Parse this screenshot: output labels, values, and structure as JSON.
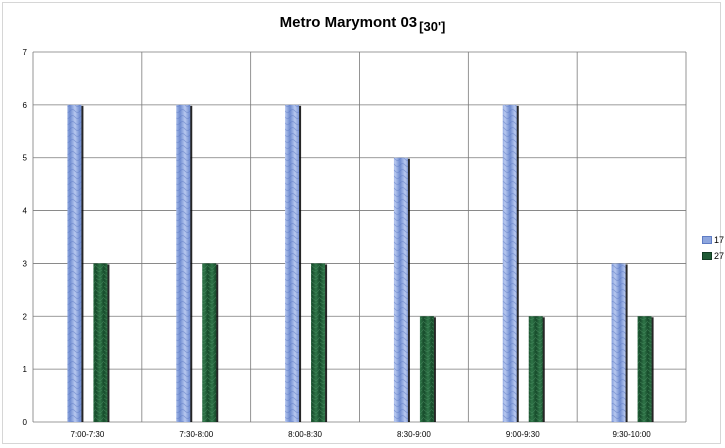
{
  "chart_data": {
    "type": "bar",
    "title": "Metro Marymont 03",
    "subtitle": "[30']",
    "categories": [
      "7:00-7:30",
      "7:30-8:00",
      "8:00-8:30",
      "8:30-9:00",
      "9:00-9:30",
      "9:30-10:00"
    ],
    "series": [
      {
        "name": "17",
        "values": [
          6,
          6,
          6,
          5,
          6,
          3
        ],
        "color": "#8ea6de"
      },
      {
        "name": "27",
        "values": [
          3,
          3,
          3,
          2,
          2,
          2
        ],
        "color": "#1f5a35"
      }
    ],
    "ylim": [
      0,
      7
    ],
    "yticks": [
      "0",
      "1",
      "2",
      "3",
      "4",
      "5",
      "6",
      "7"
    ],
    "grid": true,
    "legend_position": "right"
  }
}
